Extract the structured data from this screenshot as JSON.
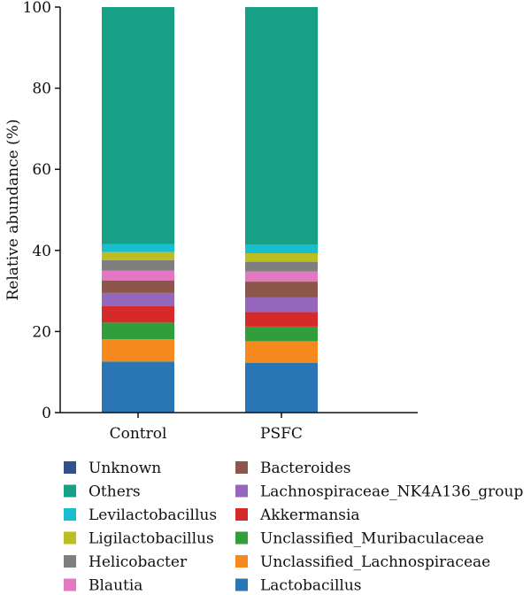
{
  "chart_data": {
    "type": "bar",
    "stacked": true,
    "title": "",
    "xlabel": "",
    "ylabel": "Relative abundance (%)",
    "ylim": [
      0,
      100
    ],
    "yticks": [
      0,
      20,
      40,
      60,
      80,
      100
    ],
    "categories": [
      "Control",
      "PSFC"
    ],
    "series": [
      {
        "name": "Lactobacillus",
        "color": "#2a75b3",
        "values": [
          12.6,
          12.3
        ]
      },
      {
        "name": "Unclassified_Lachnospiraceae",
        "color": "#f78a1e",
        "values": [
          5.5,
          5.3
        ]
      },
      {
        "name": "Unclassified_Muribaculaceae",
        "color": "#2f9e3b",
        "values": [
          4.1,
          3.6
        ]
      },
      {
        "name": "Akkermansia",
        "color": "#d62a2a",
        "values": [
          4.0,
          3.6
        ]
      },
      {
        "name": "Lachnospiraceae_NK4A136_group",
        "color": "#9467bd",
        "values": [
          3.3,
          3.6
        ]
      },
      {
        "name": "Bacteroides",
        "color": "#8c564b",
        "values": [
          3.1,
          3.9
        ]
      },
      {
        "name": "Blautia",
        "color": "#e377c2",
        "values": [
          2.4,
          2.5
        ]
      },
      {
        "name": "Helicobacter",
        "color": "#7f7f7f",
        "values": [
          2.6,
          2.4
        ]
      },
      {
        "name": "Ligilactobacillus",
        "color": "#bcbd22",
        "values": [
          2.0,
          2.1
        ]
      },
      {
        "name": "Levilactobacillus",
        "color": "#17becf",
        "values": [
          2.0,
          2.1
        ]
      },
      {
        "name": "Others",
        "color": "#16a085",
        "values": [
          58.4,
          58.6
        ]
      },
      {
        "name": "Unknown",
        "color": "#34508c",
        "values": [
          0.0,
          0.0
        ]
      }
    ],
    "legend": {
      "placement": "bottom",
      "columns": [
        [
          "Unknown",
          "Others",
          "Levilactobacillus",
          "Ligilactobacillus",
          "Helicobacter",
          "Blautia"
        ],
        [
          "Bacteroides",
          "Lachnospiraceae_NK4A136_group",
          "Akkermansia",
          "Unclassified_Muribaculaceae",
          "Unclassified_Lachnospiraceae",
          "Lactobacillus"
        ]
      ]
    },
    "grid": false
  }
}
